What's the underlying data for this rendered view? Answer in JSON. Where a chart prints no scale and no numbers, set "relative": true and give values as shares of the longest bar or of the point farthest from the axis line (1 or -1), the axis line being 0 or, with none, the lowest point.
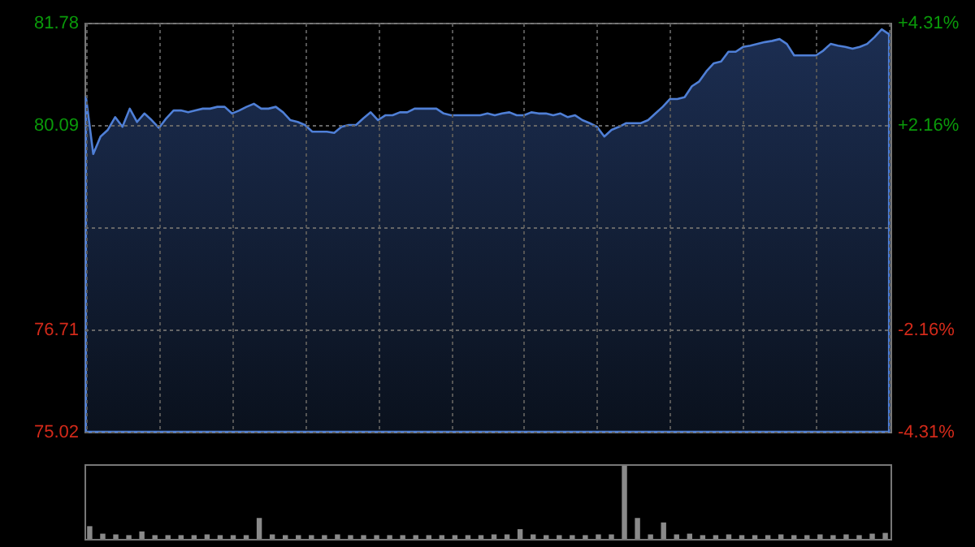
{
  "chart_data": [
    {
      "type": "area",
      "categories": [
        null,
        null,
        null,
        null,
        null,
        null,
        null,
        null,
        null,
        null,
        null,
        null,
        null,
        null,
        null,
        null,
        null,
        null,
        null,
        null,
        null,
        null,
        null,
        null,
        null,
        null,
        null,
        null,
        null,
        null,
        null,
        null,
        null,
        null,
        null,
        null,
        null,
        null,
        null,
        null,
        null,
        null,
        null,
        null,
        null,
        null,
        null,
        null,
        null,
        null,
        null,
        null,
        null,
        null,
        null,
        null,
        null,
        null,
        null,
        null,
        null,
        null,
        null,
        null,
        null,
        null,
        null,
        null,
        null,
        null,
        null,
        null,
        null,
        null,
        null,
        null,
        null,
        null,
        null,
        null,
        null,
        null,
        null,
        null,
        null,
        null,
        null,
        null,
        null,
        null,
        null,
        null,
        null,
        null,
        null,
        null,
        null,
        null,
        null,
        null,
        null,
        null,
        null,
        null,
        null,
        null,
        null,
        null,
        null,
        null,
        null
      ],
      "series": [
        {
          "color": "#4f7fd6",
          "values": [
            80.55,
            79.61,
            79.9,
            80.01,
            80.22,
            80.06,
            80.36,
            80.14,
            80.28,
            80.17,
            80.04,
            80.2,
            80.33,
            80.33,
            80.3,
            80.33,
            80.36,
            80.36,
            80.39,
            80.39,
            80.28,
            80.33,
            80.39,
            80.44,
            80.36,
            80.36,
            80.39,
            80.3,
            80.17,
            80.14,
            80.09,
            79.98,
            79.98,
            79.98,
            79.96,
            80.06,
            80.09,
            80.09,
            80.2,
            80.3,
            80.17,
            80.25,
            80.25,
            80.3,
            80.3,
            80.36,
            80.36,
            80.36,
            80.36,
            80.28,
            80.25,
            80.25,
            80.25,
            80.25,
            80.25,
            80.28,
            80.25,
            80.28,
            80.3,
            80.25,
            80.25,
            80.3,
            80.28,
            80.28,
            80.25,
            80.28,
            80.22,
            80.25,
            80.17,
            80.12,
            80.06,
            79.9,
            80.01,
            80.06,
            80.12,
            80.12,
            80.12,
            80.17,
            80.28,
            80.39,
            80.52,
            80.52,
            80.55,
            80.73,
            80.81,
            80.98,
            81.11,
            81.14,
            81.3,
            81.3,
            81.38,
            81.4,
            81.43,
            81.46,
            81.48,
            81.51,
            81.43,
            81.24,
            81.24,
            81.24,
            81.24,
            81.32,
            81.43,
            81.4,
            81.38,
            81.35,
            81.38,
            81.43,
            81.54,
            81.67,
            81.59
          ]
        }
      ],
      "ylim": [
        75.02,
        81.78
      ],
      "yticks": [
        75.02,
        76.71,
        {
          "value": 78.4,
          "label": null
        },
        80.09,
        81.78
      ],
      "y2lim": [
        -4.31,
        4.31
      ],
      "y2ticks": [
        {
          "value": -4.31,
          "label": "-4.31%"
        },
        {
          "value": -2.16,
          "label": "-2.16%"
        },
        {
          "value": 2.16,
          "label": "+2.16%"
        },
        {
          "value": 4.31,
          "label": "+4.31%"
        }
      ],
      "grid": true
    },
    {
      "type": "bar",
      "relative": true,
      "categories": [
        null,
        null,
        null,
        null,
        null,
        null,
        null,
        null,
        null,
        null,
        null,
        null,
        null,
        null,
        null,
        null,
        null,
        null,
        null,
        null,
        null,
        null,
        null,
        null,
        null,
        null,
        null,
        null,
        null,
        null,
        null,
        null,
        null,
        null,
        null,
        null,
        null,
        null,
        null,
        null,
        null,
        null,
        null,
        null,
        null,
        null,
        null,
        null,
        null,
        null,
        null,
        null,
        null,
        null,
        null,
        null,
        null,
        null,
        null,
        null,
        null,
        null
      ],
      "series": [
        {
          "color": "#8a8a8a",
          "values": [
            0.17,
            0.07,
            0.06,
            0.05,
            0.1,
            0.05,
            0.05,
            0.05,
            0.05,
            0.06,
            0.05,
            0.05,
            0.05,
            0.28,
            0.06,
            0.05,
            0.05,
            0.05,
            0.05,
            0.06,
            0.05,
            0.05,
            0.05,
            0.05,
            0.05,
            0.05,
            0.05,
            0.05,
            0.05,
            0.05,
            0.05,
            0.06,
            0.06,
            0.13,
            0.06,
            0.05,
            0.05,
            0.05,
            0.05,
            0.06,
            0.06,
            1,
            0.28,
            0.06,
            0.22,
            0.06,
            0.07,
            0.05,
            0.05,
            0.06,
            0.05,
            0.05,
            0.05,
            0.06,
            0.05,
            0.05,
            0.06,
            0.05,
            0.06,
            0.05,
            0.07,
            0.08
          ]
        }
      ]
    }
  ]
}
